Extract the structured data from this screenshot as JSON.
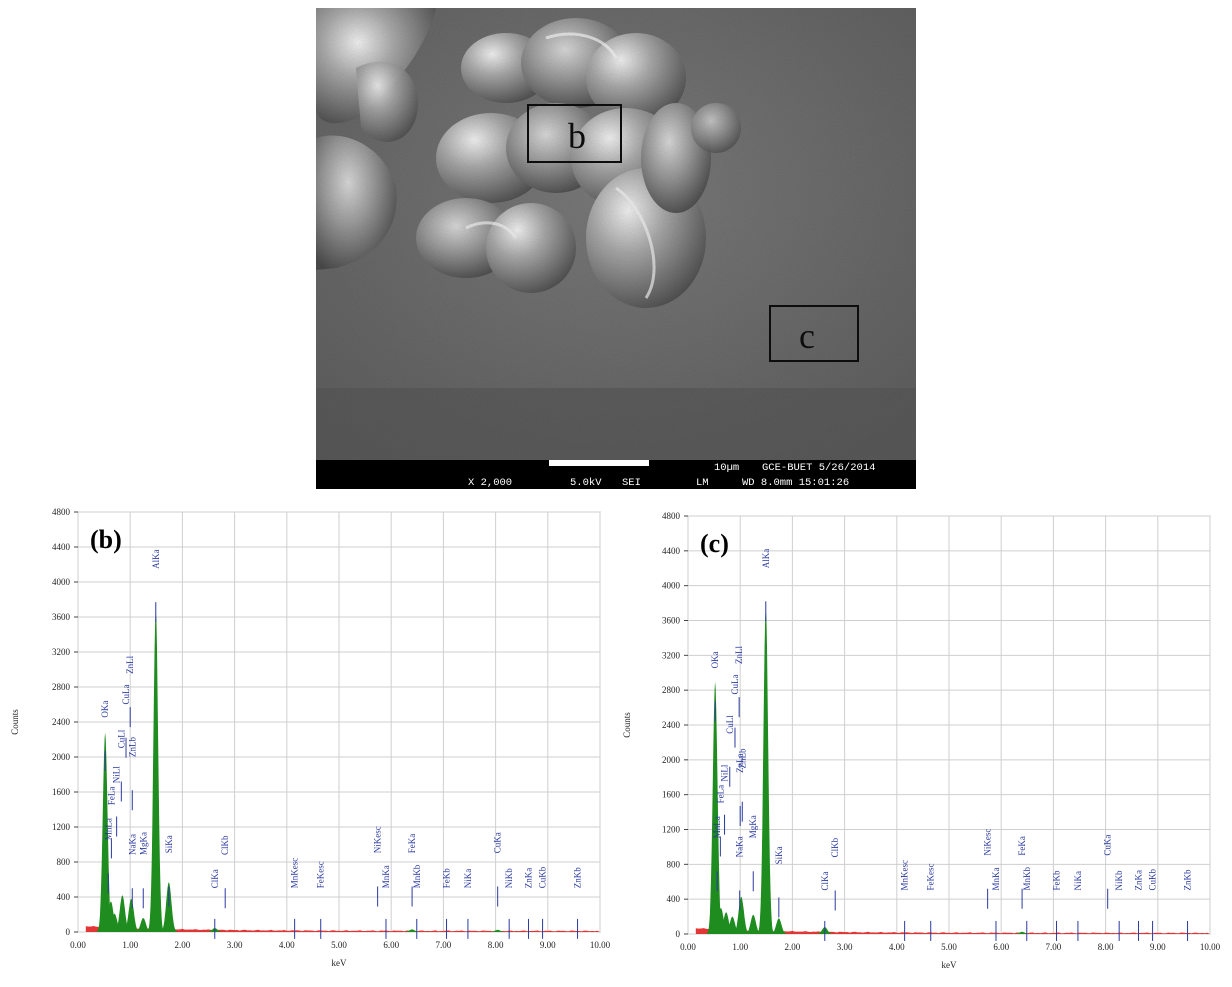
{
  "sem": {
    "box_b_label": "b",
    "box_c_label": "c",
    "scale_label": "10µm",
    "magnification": "X 2,000",
    "voltage": "5.0kV",
    "mode": "SEI",
    "lm": "LM",
    "lab_date": "GCE-BUET 5/26/2014",
    "wd_time": "WD 8.0mm  15:01:26"
  },
  "colors": {
    "peak_fill": "#1e8c1e",
    "noise_fill": "#e02020",
    "label_color": "#2a3aa0",
    "grid": "#cfcfcf"
  },
  "chart_data": [
    {
      "type": "area",
      "panel_label": "(b)",
      "xlabel": "keV",
      "ylabel": "Counts",
      "xlim": [
        0,
        10
      ],
      "ylim": [
        0,
        4800
      ],
      "x_ticks": [
        "0.00",
        "1.00",
        "2.00",
        "3.00",
        "4.00",
        "5.00",
        "6.00",
        "7.00",
        "8.00",
        "9.00",
        "10.00"
      ],
      "y_ticks": [
        "0",
        "400",
        "800",
        "1200",
        "1600",
        "2000",
        "2400",
        "2800",
        "3200",
        "3600",
        "4000",
        "4400",
        "4800"
      ],
      "peaks": [
        {
          "x": 0.52,
          "y": 2280
        },
        {
          "x": 0.63,
          "y": 350
        },
        {
          "x": 0.7,
          "y": 210
        },
        {
          "x": 0.85,
          "y": 420
        },
        {
          "x": 1.02,
          "y": 380
        },
        {
          "x": 1.25,
          "y": 160
        },
        {
          "x": 1.49,
          "y": 3680
        },
        {
          "x": 1.74,
          "y": 570
        },
        {
          "x": 2.62,
          "y": 45
        },
        {
          "x": 6.4,
          "y": 30
        },
        {
          "x": 8.04,
          "y": 25
        }
      ],
      "line_labels": [
        {
          "text": "OKa",
          "x": 0.52,
          "y": 2450
        },
        {
          "text": "MnLa",
          "x": 0.58,
          "y": 1050
        },
        {
          "text": "FeLa",
          "x": 0.64,
          "y": 1450
        },
        {
          "text": "NiLl",
          "x": 0.74,
          "y": 1700
        },
        {
          "text": "CuLl",
          "x": 0.83,
          "y": 2100
        },
        {
          "text": "CuLa",
          "x": 0.92,
          "y": 2600
        },
        {
          "text": "ZnLl",
          "x": 1.0,
          "y": 2950
        },
        {
          "text": "ZnLb",
          "x": 1.04,
          "y": 2000
        },
        {
          "text": "NaKa",
          "x": 1.04,
          "y": 880
        },
        {
          "text": "MgKa",
          "x": 1.25,
          "y": 880
        },
        {
          "text": "AlKa",
          "x": 1.49,
          "y": 4150
        },
        {
          "text": "SiKa",
          "x": 1.74,
          "y": 900
        },
        {
          "text": "ClKa",
          "x": 2.62,
          "y": 500
        },
        {
          "text": "ClKb",
          "x": 2.82,
          "y": 880
        },
        {
          "text": "MnKesc",
          "x": 4.15,
          "y": 500
        },
        {
          "text": "FeKesc",
          "x": 4.65,
          "y": 500
        },
        {
          "text": "NiKesc",
          "x": 5.74,
          "y": 900
        },
        {
          "text": "MnKa",
          "x": 5.9,
          "y": 500
        },
        {
          "text": "FeKa",
          "x": 6.4,
          "y": 900
        },
        {
          "text": "MnKb",
          "x": 6.49,
          "y": 500
        },
        {
          "text": "FeKb",
          "x": 7.06,
          "y": 500
        },
        {
          "text": "NiKa",
          "x": 7.47,
          "y": 500
        },
        {
          "text": "CuKa",
          "x": 8.04,
          "y": 900
        },
        {
          "text": "NiKb",
          "x": 8.26,
          "y": 500
        },
        {
          "text": "ZnKa",
          "x": 8.63,
          "y": 500
        },
        {
          "text": "CuKb",
          "x": 8.9,
          "y": 500
        },
        {
          "text": "ZnKb",
          "x": 9.57,
          "y": 500
        }
      ]
    },
    {
      "type": "area",
      "panel_label": "(c)",
      "xlabel": "keV",
      "ylabel": "Counts",
      "xlim": [
        0,
        10
      ],
      "ylim": [
        0,
        4800
      ],
      "x_ticks": [
        "0.00",
        "1.00",
        "2.00",
        "3.00",
        "4.00",
        "5.00",
        "6.00",
        "7.00",
        "8.00",
        "9.00",
        "10.00"
      ],
      "y_ticks": [
        "0",
        "400",
        "800",
        "1200",
        "1600",
        "2000",
        "2400",
        "2800",
        "3200",
        "3600",
        "4000",
        "4400",
        "4800"
      ],
      "peaks": [
        {
          "x": 0.52,
          "y": 2900
        },
        {
          "x": 0.63,
          "y": 300
        },
        {
          "x": 0.73,
          "y": 250
        },
        {
          "x": 0.85,
          "y": 200
        },
        {
          "x": 1.02,
          "y": 430
        },
        {
          "x": 1.25,
          "y": 220
        },
        {
          "x": 1.49,
          "y": 3750
        },
        {
          "x": 1.74,
          "y": 180
        },
        {
          "x": 2.62,
          "y": 80
        },
        {
          "x": 6.4,
          "y": 25
        }
      ],
      "line_labels": [
        {
          "text": "OKa",
          "x": 0.52,
          "y": 3050
        },
        {
          "text": "MnLa",
          "x": 0.56,
          "y": 1100
        },
        {
          "text": "FeLa",
          "x": 0.62,
          "y": 1500
        },
        {
          "text": "NiLl",
          "x": 0.7,
          "y": 1750
        },
        {
          "text": "CuLl",
          "x": 0.8,
          "y": 2300
        },
        {
          "text": "CuLa",
          "x": 0.9,
          "y": 2750
        },
        {
          "text": "ZnLl",
          "x": 0.98,
          "y": 3100
        },
        {
          "text": "ZnLa",
          "x": 1.0,
          "y": 1850
        },
        {
          "text": "ZnLb",
          "x": 1.04,
          "y": 1900
        },
        {
          "text": "NaKa",
          "x": 0.99,
          "y": 880
        },
        {
          "text": "MgKa",
          "x": 1.25,
          "y": 1100
        },
        {
          "text": "AlKa",
          "x": 1.49,
          "y": 4200
        },
        {
          "text": "SiKa",
          "x": 1.74,
          "y": 800
        },
        {
          "text": "ClKa",
          "x": 2.62,
          "y": 500
        },
        {
          "text": "ClKb",
          "x": 2.82,
          "y": 880
        },
        {
          "text": "MnKesc",
          "x": 4.15,
          "y": 500
        },
        {
          "text": "FeKesc",
          "x": 4.65,
          "y": 500
        },
        {
          "text": "NiKesc",
          "x": 5.74,
          "y": 900
        },
        {
          "text": "MnKa",
          "x": 5.9,
          "y": 500
        },
        {
          "text": "FeKa",
          "x": 6.4,
          "y": 900
        },
        {
          "text": "MnKb",
          "x": 6.49,
          "y": 500
        },
        {
          "text": "FeKb",
          "x": 7.06,
          "y": 500
        },
        {
          "text": "NiKa",
          "x": 7.47,
          "y": 500
        },
        {
          "text": "CuKa",
          "x": 8.04,
          "y": 900
        },
        {
          "text": "NiKb",
          "x": 8.26,
          "y": 500
        },
        {
          "text": "ZnKa",
          "x": 8.63,
          "y": 500
        },
        {
          "text": "CuKb",
          "x": 8.9,
          "y": 500
        },
        {
          "text": "ZnKb",
          "x": 9.57,
          "y": 500
        }
      ]
    }
  ]
}
